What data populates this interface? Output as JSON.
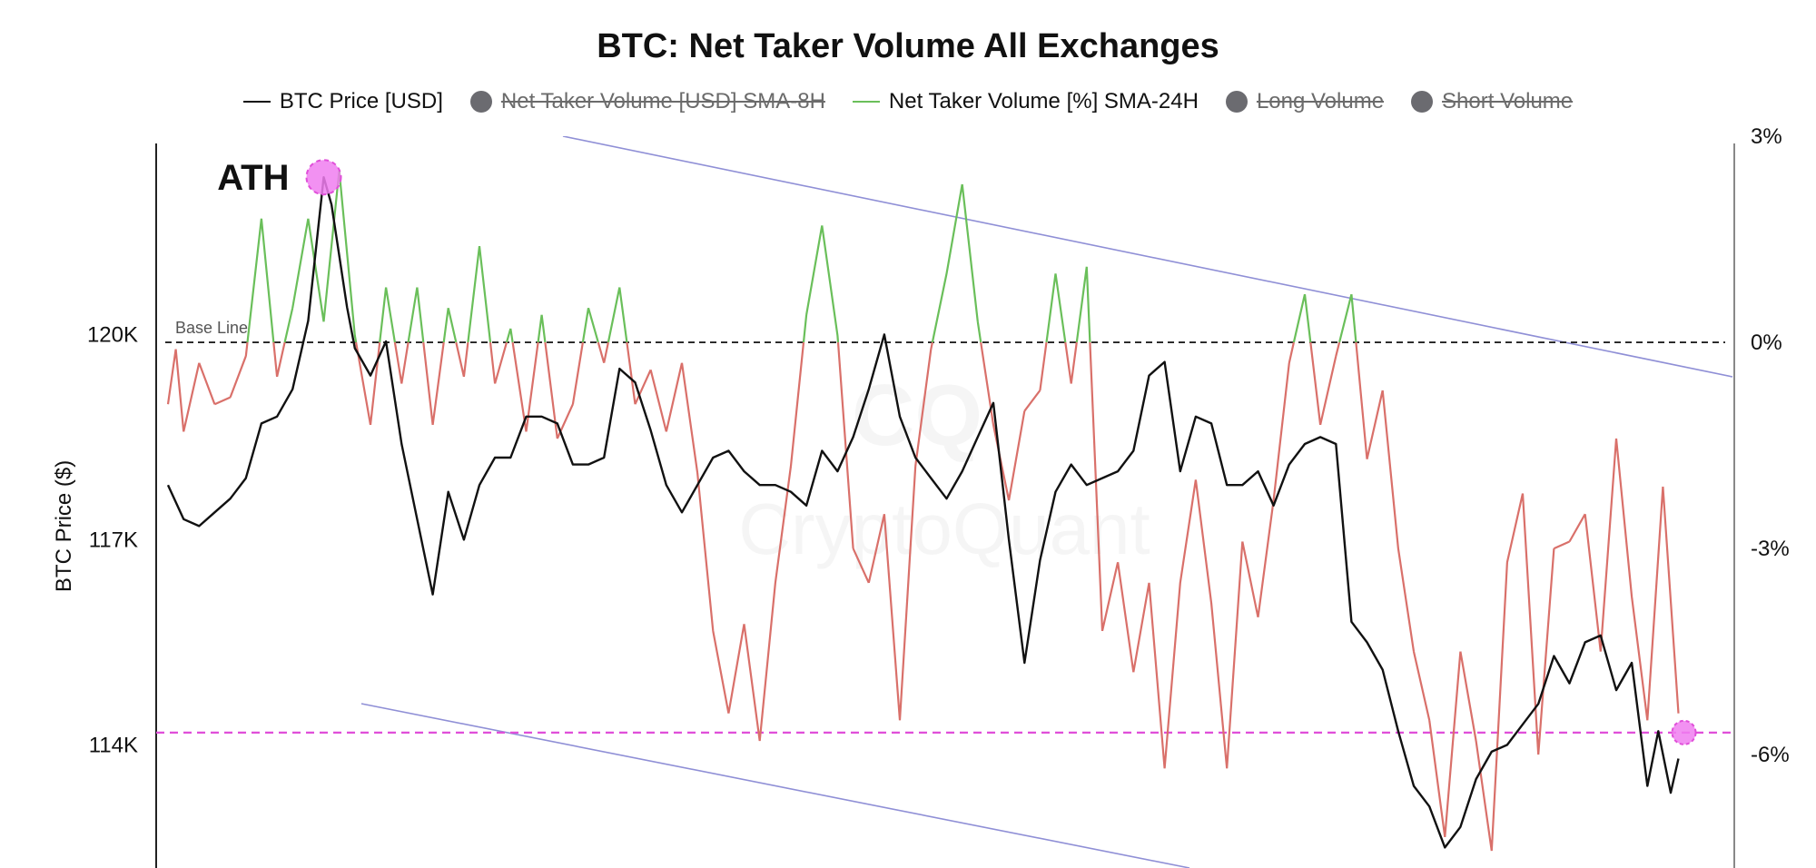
{
  "title": "BTC: Net Taker Volume All Exchanges",
  "legend": [
    {
      "label": "BTC Price [USD]",
      "marker": "line",
      "color": "#111111",
      "active": true
    },
    {
      "label": "Net Taker Volume [USD] SMA-8H",
      "marker": "dot",
      "color": "#6b6b70",
      "active": false
    },
    {
      "label": "Net Taker Volume [%] SMA-24H",
      "marker": "line",
      "color": "#6abf5a",
      "active": true
    },
    {
      "label": "Long Volume",
      "marker": "dot",
      "color": "#6b6b70",
      "active": false
    },
    {
      "label": "Short Volume",
      "marker": "dot",
      "color": "#6b6b70",
      "active": false
    }
  ],
  "annotations": {
    "ath_label": "ATH",
    "baseline_label": "Base Line"
  },
  "watermark": {
    "logo": "CQ",
    "text": "CryptoQuant"
  },
  "colors": {
    "price": "#111111",
    "volume_positive": "#6abf5a",
    "volume_negative": "#d9706a",
    "trend_channel": "#8f8fd6",
    "support_line": "#e04fd9",
    "marker": "#f07ef0"
  },
  "chart_data": {
    "type": "line",
    "y_left": {
      "label": "BTC Price ($)",
      "ticks": [
        "114K",
        "117K",
        "120K"
      ],
      "tick_values": [
        114000,
        117000,
        120000
      ],
      "range": [
        112200,
        122900
      ]
    },
    "y_right": {
      "ticks": [
        "-6%",
        "-3%",
        "0%",
        "3%"
      ],
      "tick_values": [
        -6,
        -3,
        0,
        3
      ],
      "range": [
        -7.65,
        3
      ]
    },
    "baseline_value": 0,
    "support_level": 114180,
    "x_range": [
      0,
      100
    ],
    "price": [
      [
        0,
        117.8
      ],
      [
        1,
        117.3
      ],
      [
        2,
        117.2
      ],
      [
        3,
        117.4
      ],
      [
        4,
        117.6
      ],
      [
        5,
        117.9
      ],
      [
        6,
        118.7
      ],
      [
        7,
        118.8
      ],
      [
        8,
        119.2
      ],
      [
        9,
        120.2
      ],
      [
        10,
        122.3
      ],
      [
        10.5,
        121.9
      ],
      [
        11.5,
        120.4
      ],
      [
        12,
        119.8
      ],
      [
        13,
        119.4
      ],
      [
        14,
        119.9
      ],
      [
        15,
        118.4
      ],
      [
        16,
        117.3
      ],
      [
        17,
        116.2
      ],
      [
        18,
        117.7
      ],
      [
        19,
        117.0
      ],
      [
        20,
        117.8
      ],
      [
        21,
        118.2
      ],
      [
        22,
        118.2
      ],
      [
        23,
        118.8
      ],
      [
        24,
        118.8
      ],
      [
        25,
        118.7
      ],
      [
        26,
        118.1
      ],
      [
        27,
        118.1
      ],
      [
        28,
        118.2
      ],
      [
        29,
        119.5
      ],
      [
        30,
        119.3
      ],
      [
        31,
        118.6
      ],
      [
        32,
        117.8
      ],
      [
        33,
        117.4
      ],
      [
        34,
        117.8
      ],
      [
        35,
        118.2
      ],
      [
        36,
        118.3
      ],
      [
        37,
        118.0
      ],
      [
        38,
        117.8
      ],
      [
        39,
        117.8
      ],
      [
        40,
        117.7
      ],
      [
        41,
        117.5
      ],
      [
        42,
        118.3
      ],
      [
        43,
        118.0
      ],
      [
        44,
        118.5
      ],
      [
        45,
        119.2
      ],
      [
        46,
        120.0
      ],
      [
        47,
        118.8
      ],
      [
        48,
        118.2
      ],
      [
        49,
        117.9
      ],
      [
        50,
        117.6
      ],
      [
        51,
        118.0
      ],
      [
        52,
        118.5
      ],
      [
        53,
        119.0
      ],
      [
        54,
        117.0
      ],
      [
        55,
        115.2
      ],
      [
        56,
        116.7
      ],
      [
        57,
        117.7
      ],
      [
        58,
        118.1
      ],
      [
        59,
        117.8
      ],
      [
        60,
        117.9
      ],
      [
        61,
        118.0
      ],
      [
        62,
        118.3
      ],
      [
        63,
        119.4
      ],
      [
        64,
        119.6
      ],
      [
        65,
        118.0
      ],
      [
        66,
        118.8
      ],
      [
        67,
        118.7
      ],
      [
        68,
        117.8
      ],
      [
        69,
        117.8
      ],
      [
        70,
        118.0
      ],
      [
        71,
        117.5
      ],
      [
        72,
        118.1
      ],
      [
        73,
        118.4
      ],
      [
        74,
        118.5
      ],
      [
        75,
        118.4
      ],
      [
        76,
        115.8
      ],
      [
        77,
        115.5
      ],
      [
        78,
        115.1
      ],
      [
        79,
        114.2
      ],
      [
        80,
        113.4
      ],
      [
        81,
        113.1
      ],
      [
        82,
        112.5
      ],
      [
        83,
        112.8
      ],
      [
        84,
        113.5
      ],
      [
        85,
        113.9
      ],
      [
        86,
        114.0
      ],
      [
        87,
        114.3
      ],
      [
        88,
        114.6
      ],
      [
        89,
        115.3
      ],
      [
        90,
        114.9
      ],
      [
        91,
        115.5
      ],
      [
        92,
        115.6
      ],
      [
        93,
        114.8
      ],
      [
        94,
        115.2
      ],
      [
        95,
        113.4
      ],
      [
        95.7,
        114.2
      ],
      [
        96.5,
        113.3
      ],
      [
        97,
        113.8
      ]
    ],
    "net_taker_pct": [
      [
        0,
        -0.9
      ],
      [
        0.5,
        -0.1
      ],
      [
        1,
        -1.3
      ],
      [
        2,
        -0.3
      ],
      [
        3,
        -0.9
      ],
      [
        4,
        -0.8
      ],
      [
        5,
        -0.2
      ],
      [
        6,
        1.8
      ],
      [
        7,
        -0.5
      ],
      [
        8,
        0.5
      ],
      [
        9,
        1.8
      ],
      [
        10,
        0.3
      ],
      [
        11,
        2.5
      ],
      [
        12,
        0.1
      ],
      [
        13,
        -1.2
      ],
      [
        14,
        0.8
      ],
      [
        15,
        -0.6
      ],
      [
        16,
        0.8
      ],
      [
        17,
        -1.2
      ],
      [
        18,
        0.5
      ],
      [
        19,
        -0.5
      ],
      [
        20,
        1.4
      ],
      [
        21,
        -0.6
      ],
      [
        22,
        0.2
      ],
      [
        23,
        -1.3
      ],
      [
        24,
        0.4
      ],
      [
        25,
        -1.4
      ],
      [
        26,
        -0.9
      ],
      [
        27,
        0.5
      ],
      [
        28,
        -0.3
      ],
      [
        29,
        0.8
      ],
      [
        30,
        -0.9
      ],
      [
        31,
        -0.4
      ],
      [
        32,
        -1.3
      ],
      [
        33,
        -0.3
      ],
      [
        34,
        -1.9
      ],
      [
        35,
        -4.2
      ],
      [
        36,
        -5.4
      ],
      [
        37,
        -4.1
      ],
      [
        38,
        -5.8
      ],
      [
        39,
        -3.5
      ],
      [
        40,
        -1.8
      ],
      [
        41,
        0.4
      ],
      [
        42,
        1.7
      ],
      [
        43,
        0.1
      ],
      [
        44,
        -3.0
      ],
      [
        45,
        -3.5
      ],
      [
        46,
        -2.5
      ],
      [
        47,
        -5.5
      ],
      [
        48,
        -1.8
      ],
      [
        49,
        -0.1
      ],
      [
        50,
        1.0
      ],
      [
        51,
        2.3
      ],
      [
        52,
        0.3
      ],
      [
        53,
        -1.2
      ],
      [
        54,
        -2.3
      ],
      [
        55,
        -1.0
      ],
      [
        56,
        -0.7
      ],
      [
        57,
        1.0
      ],
      [
        58,
        -0.6
      ],
      [
        59,
        1.1
      ],
      [
        60,
        -4.2
      ],
      [
        61,
        -3.2
      ],
      [
        62,
        -4.8
      ],
      [
        63,
        -3.5
      ],
      [
        64,
        -6.2
      ],
      [
        65,
        -3.5
      ],
      [
        66,
        -2.0
      ],
      [
        67,
        -3.8
      ],
      [
        68,
        -6.2
      ],
      [
        69,
        -2.9
      ],
      [
        70,
        -4.0
      ],
      [
        71,
        -2.3
      ],
      [
        72,
        -0.3
      ],
      [
        73,
        0.7
      ],
      [
        74,
        -1.2
      ],
      [
        75,
        -0.2
      ],
      [
        76,
        0.7
      ],
      [
        77,
        -1.7
      ],
      [
        78,
        -0.7
      ],
      [
        79,
        -3.0
      ],
      [
        80,
        -4.5
      ],
      [
        81,
        -5.5
      ],
      [
        82,
        -7.2
      ],
      [
        83,
        -4.5
      ],
      [
        84,
        -5.8
      ],
      [
        85,
        -7.4
      ],
      [
        86,
        -3.2
      ],
      [
        87,
        -2.2
      ],
      [
        88,
        -6.0
      ],
      [
        89,
        -3.0
      ],
      [
        90,
        -2.9
      ],
      [
        91,
        -2.5
      ],
      [
        92,
        -4.5
      ],
      [
        93,
        -1.4
      ],
      [
        94,
        -3.7
      ],
      [
        95,
        -5.5
      ],
      [
        96,
        -2.1
      ],
      [
        97,
        -5.4
      ]
    ]
  }
}
